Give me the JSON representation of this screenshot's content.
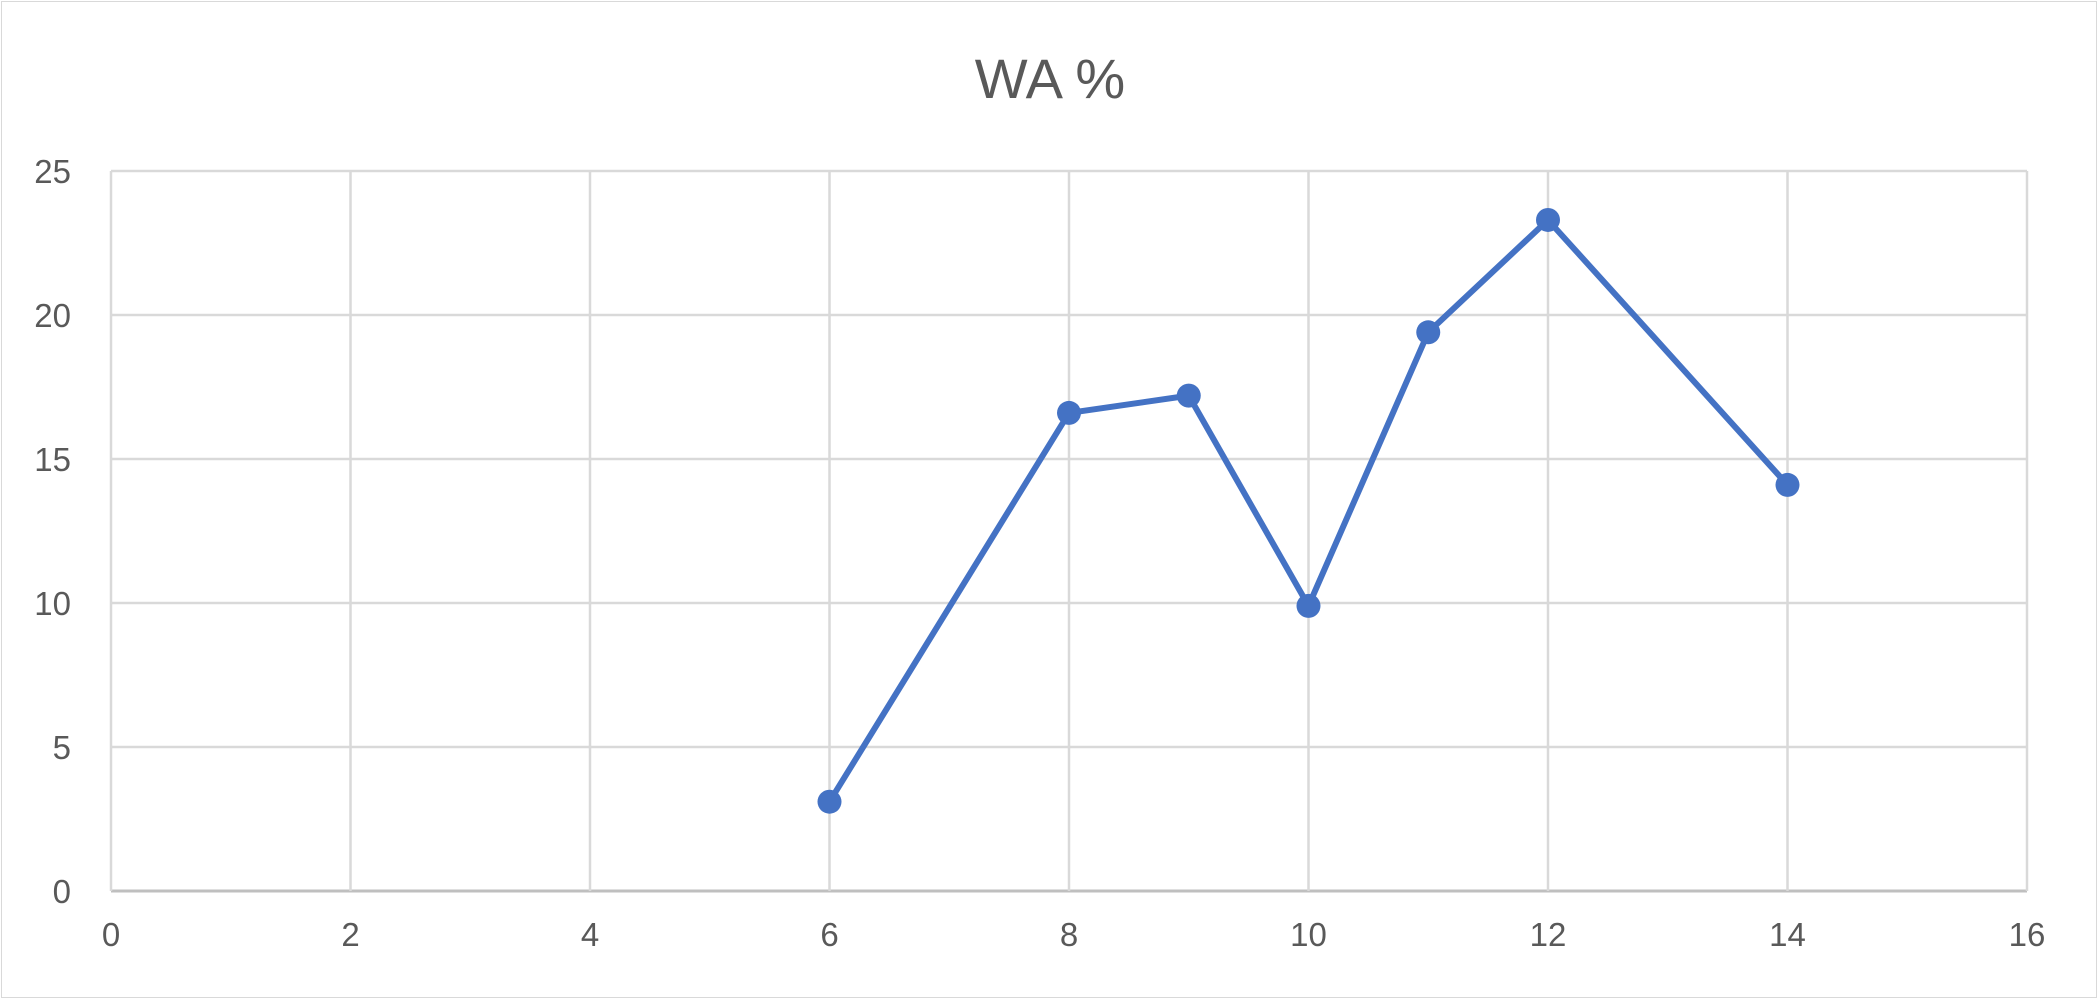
{
  "chart_data": {
    "type": "scatter",
    "title": "WA %",
    "xlabel": "",
    "ylabel": "",
    "xlim": [
      0,
      16
    ],
    "ylim": [
      0,
      25
    ],
    "xticks": [
      0,
      2,
      4,
      6,
      8,
      10,
      12,
      14,
      16
    ],
    "yticks": [
      0,
      5,
      10,
      15,
      20,
      25
    ],
    "grid": true,
    "legend": "none",
    "line_color": "#4472c4",
    "series": [
      {
        "x": [
          6,
          8,
          9,
          10,
          11,
          12,
          14
        ],
        "y": [
          3.1,
          16.6,
          17.2,
          9.9,
          19.4,
          23.3,
          14.1
        ]
      }
    ]
  }
}
